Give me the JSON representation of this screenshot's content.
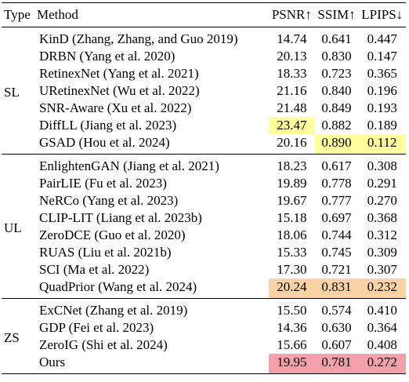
{
  "table": {
    "header": [
      "Type",
      "Method",
      "PSNR↑",
      "SSIM↑",
      "LPIPS↓"
    ],
    "groups": [
      {
        "type": "SL",
        "rows": [
          [
            "KinD (Zhang, Zhang, and Guo 2019)",
            "14.74",
            "0.641",
            "0.447"
          ],
          [
            "DRBN (Yang et al. 2020)",
            "20.13",
            "0.830",
            "0.147"
          ],
          [
            "RetinexNet (Yang et al. 2021)",
            "18.33",
            "0.723",
            "0.365"
          ],
          [
            "URetinexNet (Wu et al. 2022)",
            "21.16",
            "0.840",
            "0.196"
          ],
          [
            "SNR-Aware (Xu et al. 2022)",
            "21.48",
            "0.849",
            "0.193"
          ],
          [
            "DiffLL (Jiang et al. 2023)",
            "23.47",
            "0.882",
            "0.189"
          ],
          [
            "GSAD (Hou et al. 2024)",
            "20.16",
            "0.890",
            "0.112"
          ]
        ]
      },
      {
        "type": "UL",
        "rows": [
          [
            "EnlightenGAN (Jiang et al. 2021)",
            "18.23",
            "0.617",
            "0.308"
          ],
          [
            "PairLIE (Fu et al. 2023)",
            "19.89",
            "0.778",
            "0.291"
          ],
          [
            "NeRCo (Yang et al. 2023)",
            "19.67",
            "0.777",
            "0.270"
          ],
          [
            "CLIP-LIT (Liang et al. 2023b)",
            "15.18",
            "0.697",
            "0.368"
          ],
          [
            "ZeroDCE (Guo et al. 2020)",
            "18.06",
            "0.744",
            "0.312"
          ],
          [
            "RUAS (Liu et al. 2021b)",
            "15.33",
            "0.745",
            "0.309"
          ],
          [
            "SCI (Ma et al. 2022)",
            "17.30",
            "0.721",
            "0.307"
          ],
          [
            "QuadPrior (Wang et al. 2024)",
            "20.24",
            "0.831",
            "0.232"
          ]
        ]
      },
      {
        "type": "ZS",
        "rows": [
          [
            "ExCNet (Zhang et al. 2019)",
            "15.50",
            "0.574",
            "0.410"
          ],
          [
            "GDP (Fei et al. 2023)",
            "14.36",
            "0.630",
            "0.364"
          ],
          [
            "ZeroIG (Shi et al. 2024)",
            "15.66",
            "0.607",
            "0.408"
          ],
          [
            "Ours",
            "19.95",
            "0.781",
            "0.272"
          ]
        ]
      }
    ]
  }
}
